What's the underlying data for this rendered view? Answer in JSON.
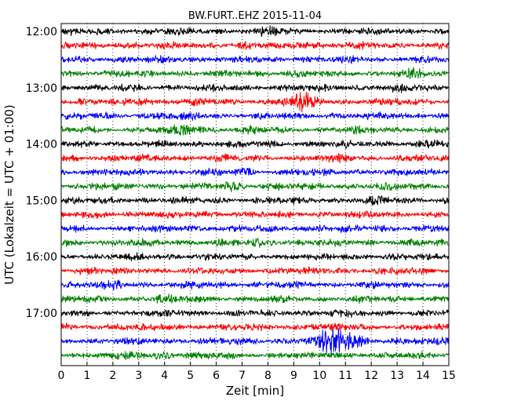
{
  "chart_data": {
    "type": "line",
    "title": "BW.FURT..EHZ 2015-11-04",
    "xlabel": "Zeit  [min]",
    "ylabel": "UTC (Lokalzeit = UTC + 01:00)",
    "xlim": [
      0,
      15
    ],
    "x_ticks": [
      "0",
      "1",
      "2",
      "3",
      "4",
      "5",
      "6",
      "7",
      "8",
      "9",
      "10",
      "11",
      "12",
      "13",
      "14",
      "15"
    ],
    "y_ticks": [
      "12:00",
      "13:00",
      "14:00",
      "15:00",
      "16:00",
      "17:00"
    ],
    "grid": "vertical dotted",
    "colors": [
      "#000000",
      "#ff0000",
      "#0000ff",
      "#008000"
    ],
    "series": [
      {
        "start": "12:00",
        "color": "#000000",
        "events": [
          {
            "x": 8.1,
            "amp": 1.6
          },
          {
            "x": 4.1,
            "amp": 1.3
          }
        ]
      },
      {
        "start": "12:15",
        "color": "#ff0000",
        "events": [
          {
            "x": 9.4,
            "amp": 1.7
          },
          {
            "x": 2.3,
            "amp": 1.3
          }
        ]
      },
      {
        "start": "12:30",
        "color": "#0000ff",
        "events": [
          {
            "x": 9.3,
            "amp": 1.4
          }
        ]
      },
      {
        "start": "12:45",
        "color": "#008000",
        "events": [
          {
            "x": 13.5,
            "amp": 2.0
          },
          {
            "x": 2.4,
            "amp": 1.4
          },
          {
            "x": 8.8,
            "amp": 1.3
          }
        ]
      },
      {
        "start": "13:00",
        "color": "#000000",
        "events": [
          {
            "x": 13.0,
            "amp": 1.3
          }
        ]
      },
      {
        "start": "13:15",
        "color": "#ff0000",
        "events": [
          {
            "x": 9.3,
            "amp": 3.4
          },
          {
            "x": 3.1,
            "amp": 1.8
          }
        ]
      },
      {
        "start": "13:30",
        "color": "#0000ff",
        "events": [
          {
            "x": 3.8,
            "amp": 1.4
          },
          {
            "x": 5.0,
            "amp": 1.3
          }
        ]
      },
      {
        "start": "13:45",
        "color": "#008000",
        "events": [
          {
            "x": 4.9,
            "amp": 2.0
          },
          {
            "x": 7.3,
            "amp": 1.3
          }
        ]
      },
      {
        "start": "14:00",
        "color": "#000000",
        "events": [
          {
            "x": 14.9,
            "amp": 1.5
          },
          {
            "x": 14.2,
            "amp": 1.3
          }
        ]
      },
      {
        "start": "14:15",
        "color": "#ff0000",
        "events": [
          {
            "x": 10.9,
            "amp": 1.4
          }
        ]
      },
      {
        "start": "14:30",
        "color": "#0000ff",
        "events": [
          {
            "x": 7.1,
            "amp": 1.4
          },
          {
            "x": 9.5,
            "amp": 1.3
          }
        ]
      },
      {
        "start": "14:45",
        "color": "#008000",
        "events": [
          {
            "x": 1.5,
            "amp": 1.5
          },
          {
            "x": 6.7,
            "amp": 1.7
          },
          {
            "x": 8.2,
            "amp": 1.4
          }
        ]
      },
      {
        "start": "15:00",
        "color": "#000000",
        "events": [
          {
            "x": 12.3,
            "amp": 1.6
          },
          {
            "x": 14.9,
            "amp": 1.3
          }
        ]
      },
      {
        "start": "15:15",
        "color": "#ff0000",
        "events": [
          {
            "x": 5.0,
            "amp": 1.3
          }
        ]
      },
      {
        "start": "15:30",
        "color": "#0000ff",
        "events": [
          {
            "x": 10.1,
            "amp": 1.5
          },
          {
            "x": 12.5,
            "amp": 1.3
          }
        ]
      },
      {
        "start": "15:45",
        "color": "#008000",
        "events": [
          {
            "x": 7.8,
            "amp": 1.7
          }
        ]
      },
      {
        "start": "16:00",
        "color": "#000000",
        "events": [
          {
            "x": 11.1,
            "amp": 1.3
          }
        ]
      },
      {
        "start": "16:15",
        "color": "#ff0000",
        "events": [
          {
            "x": 1.0,
            "amp": 1.4
          },
          {
            "x": 10.8,
            "amp": 1.3
          }
        ]
      },
      {
        "start": "16:30",
        "color": "#0000ff",
        "events": [
          {
            "x": 2.0,
            "amp": 1.7
          },
          {
            "x": 5.4,
            "amp": 1.3
          }
        ]
      },
      {
        "start": "16:45",
        "color": "#008000",
        "events": [
          {
            "x": 3.9,
            "amp": 1.6
          },
          {
            "x": 5.2,
            "amp": 1.3
          }
        ]
      },
      {
        "start": "17:00",
        "color": "#000000",
        "events": [
          {
            "x": 10.6,
            "amp": 1.3
          }
        ]
      },
      {
        "start": "17:15",
        "color": "#ff0000",
        "events": [
          {
            "x": 2.2,
            "amp": 1.5
          },
          {
            "x": 9.9,
            "amp": 1.3
          }
        ]
      },
      {
        "start": "17:30",
        "color": "#0000ff",
        "events": [
          {
            "x": 10.3,
            "amp": 3.4
          },
          {
            "x": 10.8,
            "amp": 3.6
          },
          {
            "x": 11.7,
            "amp": 1.8
          },
          {
            "x": 14.8,
            "amp": 1.6
          }
        ]
      },
      {
        "start": "17:45",
        "color": "#008000",
        "events": [
          {
            "x": 3.9,
            "amp": 1.6
          },
          {
            "x": 2.9,
            "amp": 1.3
          }
        ]
      }
    ]
  }
}
